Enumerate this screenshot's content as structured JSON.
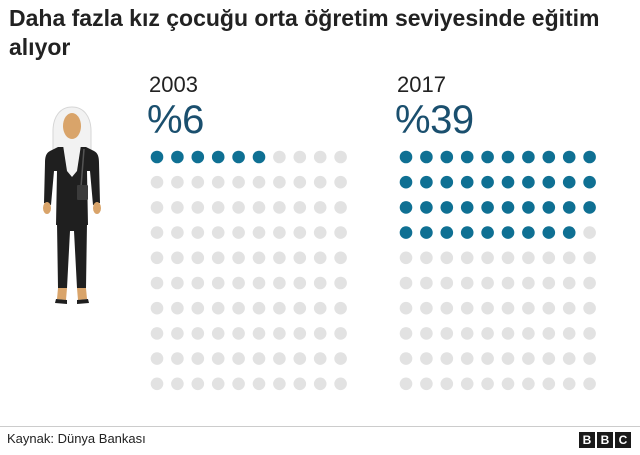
{
  "title": "Daha fazla kız çocuğu orta öğretim seviyesinde eğitim alıyor",
  "source": "Kaynak: Dünya Bankası",
  "logo_letters": [
    "B",
    "B",
    "C"
  ],
  "colors": {
    "filled": "#0f7093",
    "empty": "#e2e2e2",
    "pct_text": "#1a4f6e"
  },
  "chart_data": [
    {
      "type": "waffle",
      "year": "2003",
      "label": "%6",
      "value": 6,
      "total": 100
    },
    {
      "type": "waffle",
      "year": "2017",
      "label": "%39",
      "value": 39,
      "total": 100
    }
  ]
}
